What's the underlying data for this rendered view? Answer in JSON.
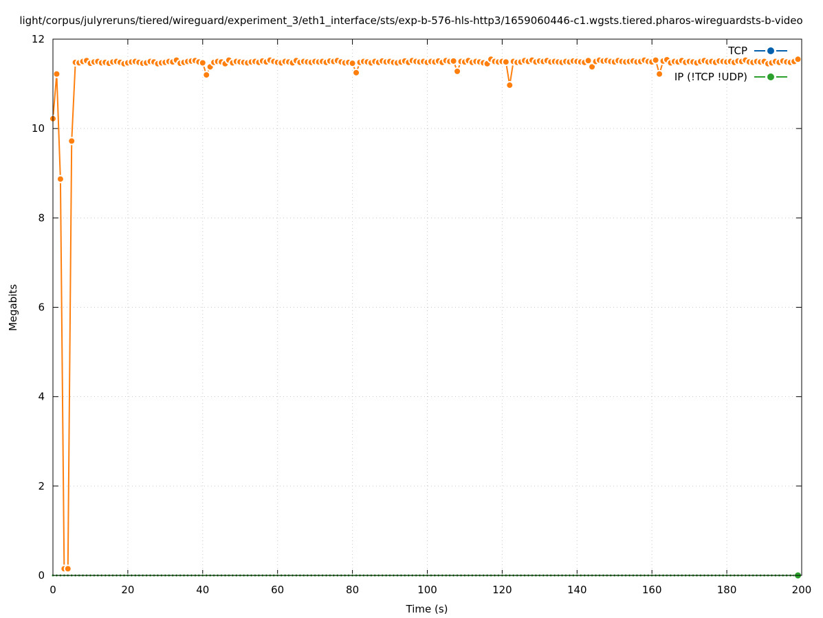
{
  "chart_data": {
    "type": "line",
    "title": "light/corpus/julyreruns/tiered/wireguard/experiment_3/eth1_interface/sts/exp-b-576-hls-http3/1659060446-c1.wgsts.tiered.pharos-wireguardsts-b-video",
    "xlabel": "Time (s)",
    "ylabel": "Megabits",
    "xlim": [
      0,
      200
    ],
    "ylim": [
      0,
      12
    ],
    "xticks": [
      0,
      20,
      40,
      60,
      80,
      100,
      120,
      140,
      160,
      180,
      200
    ],
    "yticks": [
      0,
      2,
      4,
      6,
      8,
      10,
      12
    ],
    "grid": true,
    "legend_position": "top-right",
    "legend": [
      {
        "name": "TCP",
        "color": "#0060ad"
      },
      {
        "name": "IP (!TCP  !UDP)",
        "color": "#2ca02c"
      }
    ],
    "series": [
      {
        "color": "#ff7f0e",
        "x_start": 0,
        "x_step": 1,
        "values": [
          10.22,
          11.22,
          8.87,
          0.15,
          0.15,
          9.72,
          11.48,
          11.47,
          11.5,
          11.52,
          11.46,
          11.49,
          11.5,
          11.47,
          11.48,
          11.46,
          11.49,
          11.5,
          11.48,
          11.45,
          11.47,
          11.49,
          11.5,
          11.48,
          11.46,
          11.47,
          11.5,
          11.49,
          11.45,
          11.47,
          11.48,
          11.5,
          11.49,
          11.53,
          11.46,
          11.48,
          11.5,
          11.51,
          11.52,
          11.49,
          11.47,
          11.2,
          11.38,
          11.48,
          11.5,
          11.49,
          11.45,
          11.53,
          11.47,
          11.5,
          11.49,
          11.48,
          11.47,
          11.49,
          11.5,
          11.48,
          11.51,
          11.49,
          11.53,
          11.5,
          11.48,
          11.47,
          11.5,
          11.49,
          11.47,
          11.52,
          11.48,
          11.5,
          11.49,
          11.48,
          11.5,
          11.49,
          11.5,
          11.48,
          11.51,
          11.5,
          11.52,
          11.49,
          11.47,
          11.48,
          11.46,
          11.25,
          11.48,
          11.5,
          11.49,
          11.47,
          11.5,
          11.48,
          11.51,
          11.49,
          11.5,
          11.48,
          11.47,
          11.49,
          11.51,
          11.48,
          11.52,
          11.5,
          11.49,
          11.5,
          11.48,
          11.5,
          11.49,
          11.51,
          11.48,
          11.52,
          11.5,
          11.51,
          11.28,
          11.5,
          11.49,
          11.52,
          11.48,
          11.5,
          11.49,
          11.47,
          11.45,
          11.55,
          11.5,
          11.49,
          11.5,
          11.49,
          10.97,
          11.5,
          11.48,
          11.49,
          11.52,
          11.5,
          11.53,
          11.49,
          11.51,
          11.5,
          11.52,
          11.49,
          11.5,
          11.49,
          11.48,
          11.5,
          11.49,
          11.51,
          11.5,
          11.49,
          11.48,
          11.52,
          11.38,
          11.5,
          11.53,
          11.51,
          11.52,
          11.5,
          11.49,
          11.52,
          11.5,
          11.49,
          11.5,
          11.51,
          11.49,
          11.5,
          11.53,
          11.5,
          11.49,
          11.53,
          11.22,
          11.51,
          11.54,
          11.47,
          11.5,
          11.49,
          11.52,
          11.48,
          11.5,
          11.49,
          11.47,
          11.5,
          11.52,
          11.49,
          11.5,
          11.48,
          11.51,
          11.5,
          11.49,
          11.5,
          11.48,
          11.51,
          11.5,
          11.53,
          11.49,
          11.48,
          11.5,
          11.49,
          11.5,
          11.45,
          11.47,
          11.5,
          11.48,
          11.51,
          11.49,
          11.48,
          11.5,
          11.55
        ]
      },
      {
        "name": "IP (!TCP  !UDP)",
        "color": "#2ca02c",
        "x_start": 0,
        "x_step": 1,
        "values": [
          0,
          0,
          0,
          0,
          0,
          0,
          0,
          0,
          0,
          0,
          0,
          0,
          0,
          0,
          0,
          0,
          0,
          0,
          0,
          0,
          0,
          0,
          0,
          0,
          0,
          0,
          0,
          0,
          0,
          0,
          0,
          0,
          0,
          0,
          0,
          0,
          0,
          0,
          0,
          0,
          0,
          0,
          0,
          0,
          0,
          0,
          0,
          0,
          0,
          0,
          0,
          0,
          0,
          0,
          0,
          0,
          0,
          0,
          0,
          0,
          0,
          0,
          0,
          0,
          0,
          0,
          0,
          0,
          0,
          0,
          0,
          0,
          0,
          0,
          0,
          0,
          0,
          0,
          0,
          0,
          0,
          0,
          0,
          0,
          0,
          0,
          0,
          0,
          0,
          0,
          0,
          0,
          0,
          0,
          0,
          0,
          0,
          0,
          0,
          0,
          0,
          0,
          0,
          0,
          0,
          0,
          0,
          0,
          0,
          0,
          0,
          0,
          0,
          0,
          0,
          0,
          0,
          0,
          0,
          0,
          0,
          0,
          0,
          0,
          0,
          0,
          0,
          0,
          0,
          0,
          0,
          0,
          0,
          0,
          0,
          0,
          0,
          0,
          0,
          0,
          0,
          0,
          0,
          0,
          0,
          0,
          0,
          0,
          0,
          0,
          0,
          0,
          0,
          0,
          0,
          0,
          0,
          0,
          0,
          0,
          0,
          0,
          0,
          0,
          0,
          0,
          0,
          0,
          0,
          0,
          0,
          0,
          0,
          0,
          0,
          0,
          0,
          0,
          0,
          0,
          0,
          0,
          0,
          0,
          0,
          0,
          0,
          0,
          0,
          0,
          0,
          0,
          0,
          0,
          0,
          0,
          0,
          0,
          0,
          0
        ]
      }
    ]
  }
}
